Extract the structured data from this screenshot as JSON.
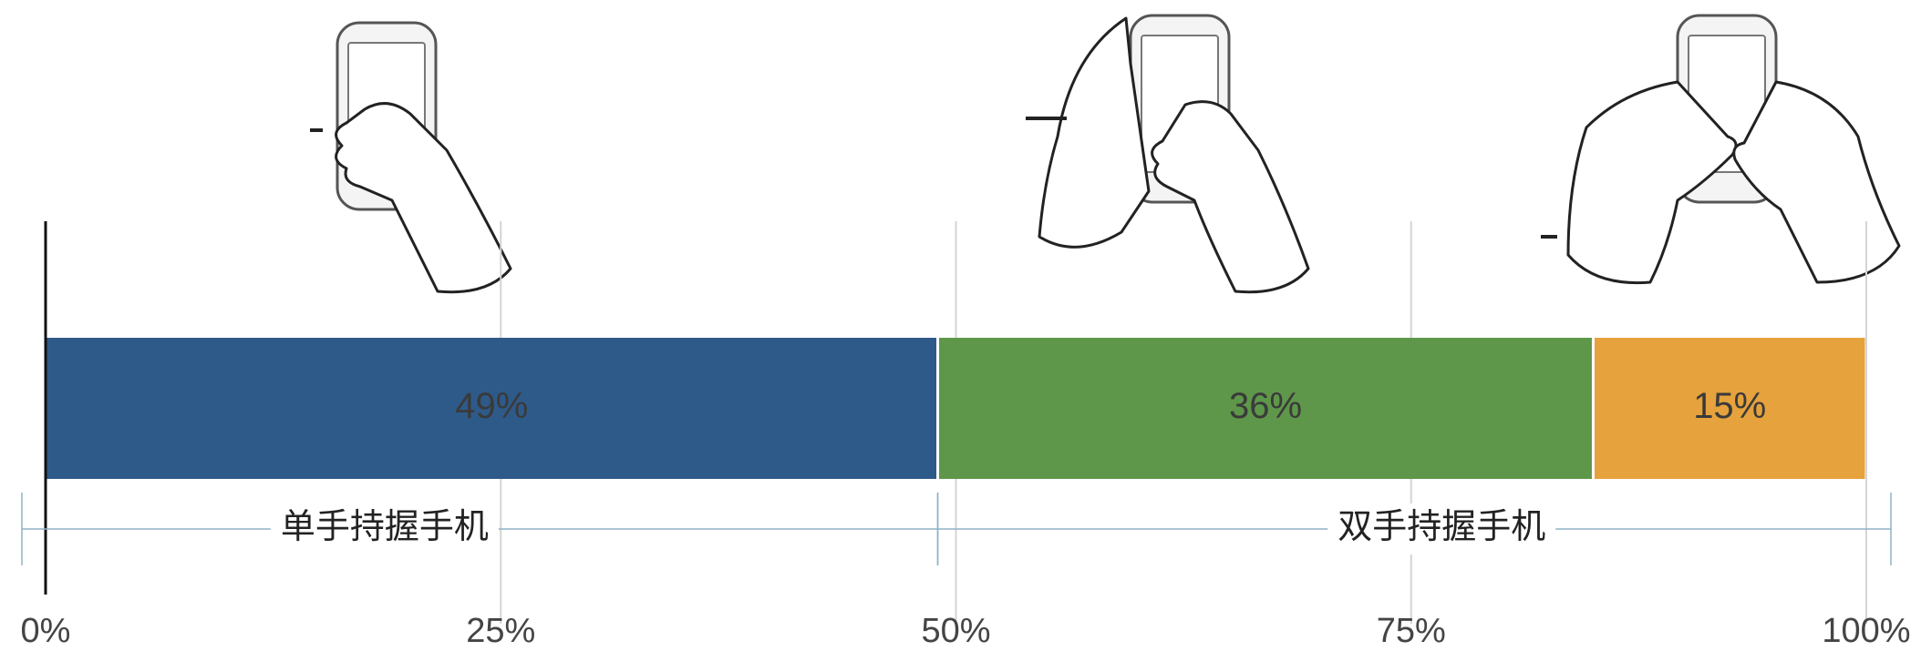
{
  "chart_data": {
    "type": "stacked-bar",
    "series": [
      {
        "color": "#2e5a8a",
        "values": [
          49
        ],
        "value_labels": [
          "49%"
        ]
      },
      {
        "color": "#5e974a",
        "values": [
          36
        ],
        "value_labels": [
          "36%"
        ]
      },
      {
        "color": "#e6a23c",
        "values": [
          15
        ],
        "value_labels": [
          "15%"
        ]
      }
    ],
    "xlim": [
      0,
      100
    ],
    "xticks": [
      {
        "value": 0,
        "label": "0%"
      },
      {
        "value": 25,
        "label": "25%"
      },
      {
        "value": 50,
        "label": "50%"
      },
      {
        "value": 75,
        "label": "75%"
      },
      {
        "value": 100,
        "label": "100%"
      }
    ],
    "grid": true,
    "annotations": [
      {
        "text": "单手持握手机"
      },
      {
        "text": "双手持握手机"
      }
    ]
  }
}
